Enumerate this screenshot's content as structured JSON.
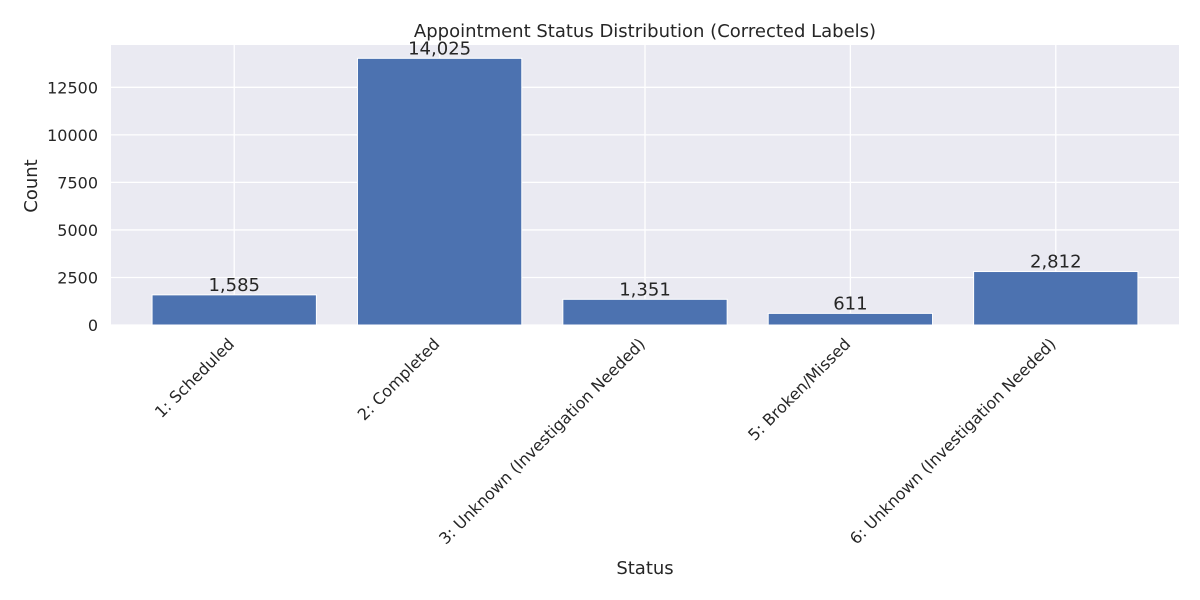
{
  "chart_data": {
    "type": "bar",
    "title": "Appointment Status Distribution (Corrected Labels)",
    "xlabel": "Status",
    "ylabel": "Count",
    "categories": [
      "1: Scheduled",
      "2: Completed",
      "3: Unknown (Investigation Needed)",
      "5: Broken/Missed",
      "6: Unknown (Investigation Needed)"
    ],
    "values": [
      1585,
      14025,
      1351,
      611,
      2812
    ],
    "data_labels": [
      "1,585",
      "14,025",
      "1,351",
      "611",
      "2,812"
    ],
    "yticks": [
      0,
      2500,
      5000,
      7500,
      10000,
      12500
    ],
    "ylim": [
      0,
      14726
    ],
    "grid": true,
    "colors": {
      "bar": "#4c72b0",
      "plot_background": "#eaeaf2",
      "grid": "#ffffff",
      "text": "#262626"
    }
  }
}
